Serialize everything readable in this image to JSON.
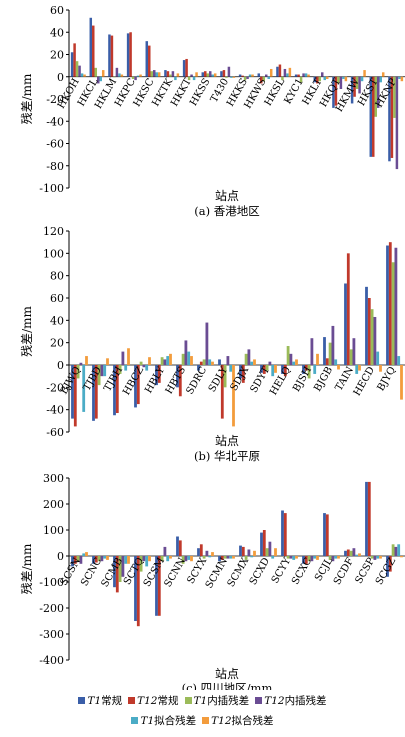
{
  "series_colors": [
    "#3a5ea8",
    "#c0392b",
    "#9bbb59",
    "#6a4c93",
    "#4bacc6",
    "#f39c3c"
  ],
  "legend": {
    "row1": [
      {
        "var": "T1",
        "label": "常规"
      },
      {
        "var": "T12",
        "label": "常规"
      },
      {
        "var": "T1",
        "label": "内插残差"
      },
      {
        "var": "T12",
        "label": "内插残差"
      }
    ],
    "row2": [
      {
        "var": "T1",
        "label": "拟合残差"
      },
      {
        "var": "T12",
        "label": "拟合残差"
      }
    ]
  },
  "chart_data": [
    {
      "type": "bar",
      "title": "(a) 香港地区",
      "xlabel": "站点",
      "ylabel": "残差/mm",
      "ylim": [
        -100,
        60
      ],
      "yticks": [
        -100,
        -80,
        -60,
        -40,
        -20,
        0,
        20,
        40,
        60
      ],
      "categories": [
        "HKOH",
        "HKCL",
        "HKLM",
        "HKPC",
        "HKSC",
        "HKTK",
        "HKKT",
        "HKSS",
        "T430",
        "HKKS",
        "HKWS",
        "HKSL",
        "KYC1",
        "HKLT",
        "HKQT",
        "HKMW",
        "HKST",
        "HKNP"
      ],
      "series": [
        {
          "name": "T1常规",
          "values": [
            22,
            53,
            38,
            39,
            32,
            6,
            15,
            4,
            5,
            2,
            3,
            9,
            2,
            -5,
            -28,
            -24,
            -72,
            -76
          ]
        },
        {
          "name": "T12常规",
          "values": [
            30,
            46,
            37,
            40,
            28,
            5,
            16,
            5,
            6,
            1,
            -6,
            11,
            2,
            -6,
            -26,
            -18,
            -72,
            -73
          ]
        },
        {
          "name": "T1内插残差",
          "values": [
            14,
            8,
            0,
            -2,
            5,
            2,
            -3,
            3,
            -1,
            -3,
            -4,
            -3,
            -5,
            -4,
            -6,
            -11,
            -36,
            -37
          ]
        },
        {
          "name": "T12内插残差",
          "values": [
            10,
            -6,
            8,
            -3,
            6,
            5,
            2,
            5,
            9,
            -2,
            2,
            7,
            3,
            4,
            -11,
            -15,
            -28,
            -83
          ]
        },
        {
          "name": "T1拟合残差",
          "values": [
            3,
            -4,
            3,
            1,
            4,
            -3,
            -3,
            2,
            -1,
            2,
            -2,
            3,
            3,
            -3,
            -2,
            -4,
            -5,
            -2
          ]
        },
        {
          "name": "T12拟合残差",
          "values": [
            2,
            6,
            2,
            2,
            4,
            3,
            4,
            3,
            -1,
            2,
            7,
            8,
            2,
            -2,
            -4,
            6,
            4,
            -4
          ]
        }
      ]
    },
    {
      "type": "bar",
      "title": "(b) 华北平原",
      "xlabel": "站点",
      "ylabel": "残差/mm",
      "ylim": [
        -60,
        120
      ],
      "yticks": [
        -60,
        -40,
        -20,
        0,
        20,
        40,
        60,
        80,
        100,
        120
      ],
      "categories": [
        "BJWQ",
        "TJBD",
        "TJBH",
        "HBCZ",
        "HBLY",
        "HBTS",
        "SDRC",
        "SDLY",
        "SDJX",
        "SDYT",
        "HELQ",
        "BJSH",
        "BJGB",
        "TAIN",
        "HECD",
        "BJYQ"
      ],
      "series": [
        {
          "name": "T1常规",
          "values": [
            -48,
            -50,
            -45,
            -38,
            -18,
            -20,
            -5,
            5,
            -12,
            -7,
            -8,
            -8,
            25,
            73,
            70,
            107
          ]
        },
        {
          "name": "T12常规",
          "values": [
            -55,
            -48,
            -43,
            -35,
            -16,
            -28,
            3,
            -48,
            -16,
            -8,
            -10,
            -5,
            6,
            100,
            60,
            110
          ]
        },
        {
          "name": "T1内插残差",
          "values": [
            -12,
            -18,
            -8,
            3,
            7,
            10,
            5,
            -20,
            10,
            -5,
            17,
            -12,
            20,
            14,
            50,
            92
          ]
        },
        {
          "name": "T12内插残差",
          "values": [
            2,
            -10,
            12,
            -2,
            5,
            22,
            38,
            8,
            14,
            3,
            10,
            24,
            35,
            24,
            43,
            105
          ]
        },
        {
          "name": "T1拟合残差",
          "values": [
            -42,
            -10,
            -5,
            -5,
            8,
            12,
            5,
            -6,
            3,
            -10,
            3,
            -8,
            5,
            -8,
            12,
            8
          ]
        },
        {
          "name": "T12拟合残差",
          "values": [
            8,
            6,
            15,
            7,
            10,
            8,
            3,
            -55,
            5,
            -7,
            5,
            10,
            -4,
            -5,
            -6,
            -31
          ]
        }
      ]
    },
    {
      "type": "bar",
      "title": "(c) 四川地区/mm",
      "xlabel": "站点",
      "ylabel": "残差/mm",
      "ylim": [
        -400,
        300
      ],
      "yticks": [
        -400,
        -300,
        -200,
        -100,
        0,
        100,
        200,
        300
      ],
      "categories": [
        "SCSN",
        "SCNC",
        "SCMB",
        "SCTQ",
        "SCSM",
        "SCNN",
        "SCYX",
        "SCMN",
        "SCMX",
        "SCXD",
        "SCYY",
        "SCXC",
        "SCJL",
        "SCDF",
        "SCSP",
        "SCGZ"
      ],
      "series": [
        {
          "name": "T1常规",
          "values": [
            -40,
            -30,
            -120,
            -250,
            -230,
            75,
            30,
            -20,
            40,
            90,
            175,
            -30,
            165,
            20,
            285,
            -80
          ]
        },
        {
          "name": "T12常规",
          "values": [
            -30,
            -25,
            -140,
            -270,
            -230,
            60,
            45,
            -15,
            35,
            100,
            165,
            -30,
            160,
            25,
            285,
            -60
          ]
        },
        {
          "name": "T1内插残差",
          "values": [
            -20,
            -20,
            -100,
            -60,
            -20,
            -30,
            -10,
            -10,
            -15,
            30,
            -10,
            -20,
            -15,
            20,
            -10,
            45
          ]
        },
        {
          "name": "T12内插残差",
          "values": [
            -30,
            -20,
            -80,
            -20,
            35,
            -20,
            20,
            -10,
            25,
            55,
            -10,
            -20,
            -20,
            30,
            -15,
            35
          ]
        },
        {
          "name": "T1拟合残差",
          "values": [
            10,
            -10,
            -30,
            -40,
            -20,
            -15,
            -5,
            -10,
            -5,
            -10,
            -15,
            -10,
            -10,
            5,
            -10,
            45
          ]
        },
        {
          "name": "T12拟合残差",
          "values": [
            15,
            -15,
            -30,
            -20,
            -10,
            -20,
            15,
            -10,
            20,
            30,
            -10,
            -15,
            -10,
            10,
            -10,
            -5
          ]
        }
      ]
    }
  ]
}
